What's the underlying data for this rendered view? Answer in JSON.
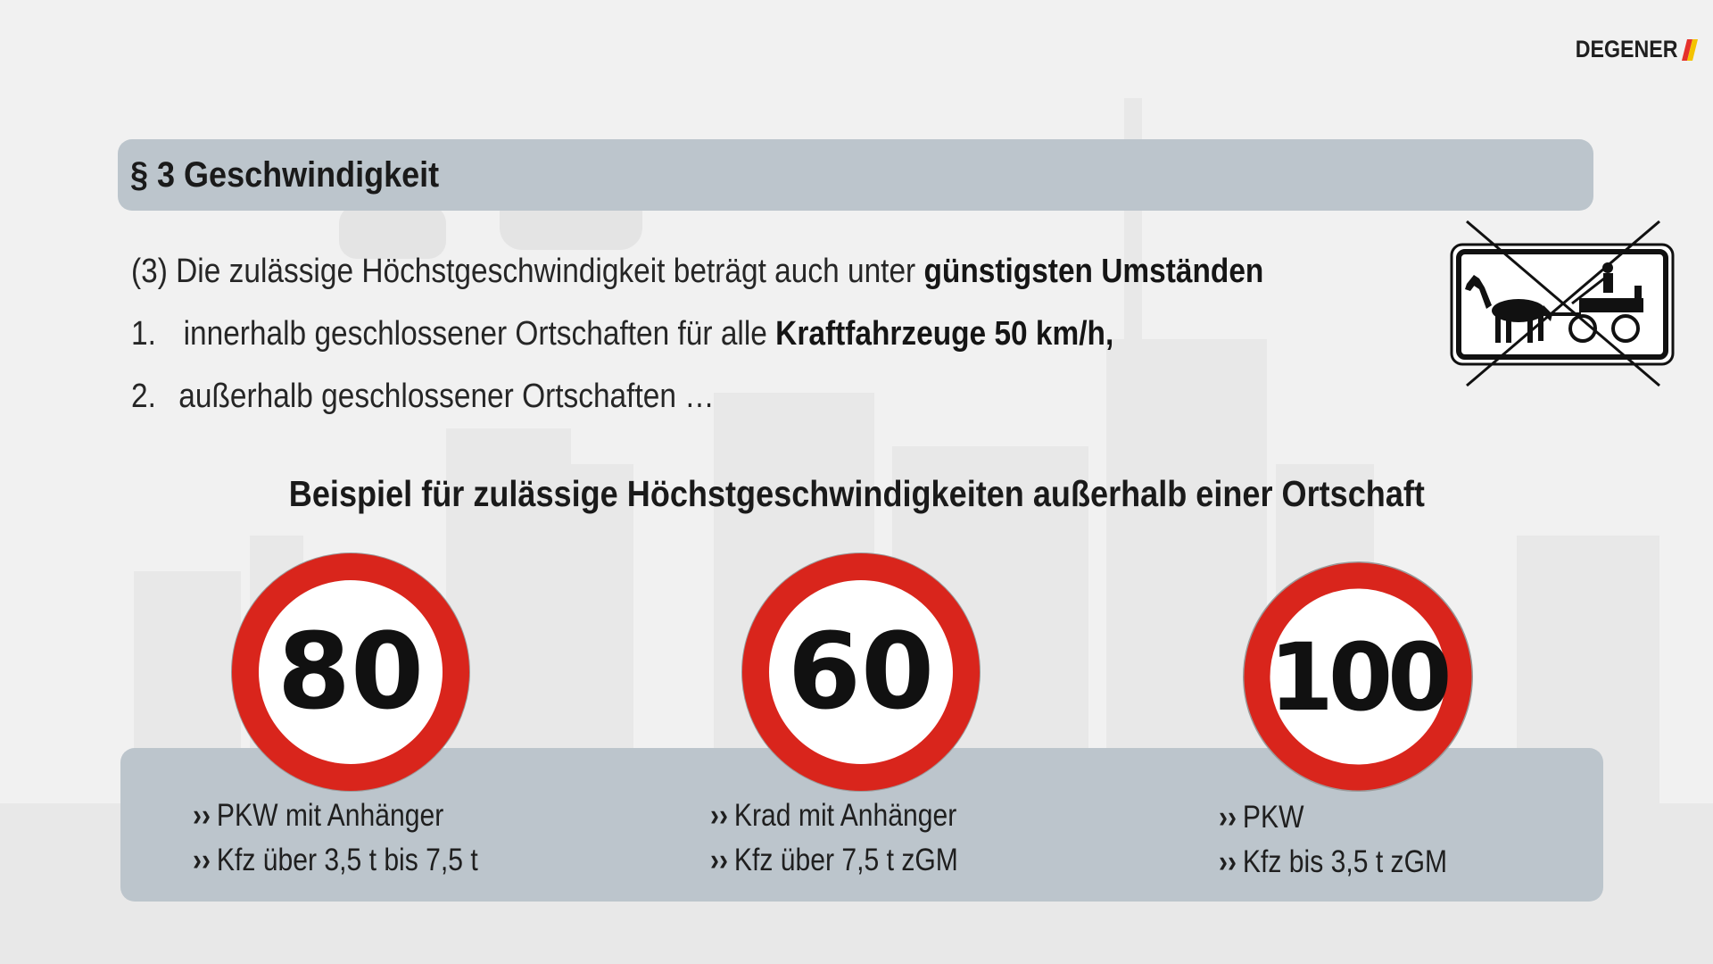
{
  "brand": {
    "name": "DEGENER"
  },
  "title": "§ 3 Geschwindigkeit",
  "rule": {
    "intro_prefix": "(3) Die zulässige Höchstgeschwindigkeit beträgt auch unter",
    "intro_bold": "günstigsten Umständen",
    "items": [
      {
        "number": "1.",
        "prefix": "innerhalb geschlossener Ortschaften für alle",
        "bold": "Kraftfahrzeuge 50 km/h,",
        "suffix": ""
      },
      {
        "number": "2.",
        "prefix": "außerhalb geschlossener Ortschaften …",
        "bold": "",
        "suffix": ""
      }
    ]
  },
  "example_heading": "Beispiel für zulässige Höchstgeschwindigkeiten außerhalb einer Ortschaft",
  "bullet_symbol": "››",
  "speed_limits": [
    {
      "speed": "80",
      "vehicles": [
        "PKW mit Anhänger",
        "Kfz über 3,5 t bis 7,5 t"
      ]
    },
    {
      "speed": "60",
      "vehicles": [
        "Krad mit Anhänger",
        "Kfz über 7,5 t zGM"
      ]
    },
    {
      "speed": "100",
      "vehicles": [
        "PKW",
        "Kfz bis 3,5 t zGM"
      ]
    }
  ],
  "colors": {
    "bar": "#bcc5cc",
    "sign_red": "#d9251c",
    "logo_stripes": [
      "#e5312b",
      "#f4c300"
    ]
  },
  "icons": {
    "carriage_sign": "horse-carriage-crossed-icon",
    "speed_sign": "speed-limit-sign-icon"
  }
}
